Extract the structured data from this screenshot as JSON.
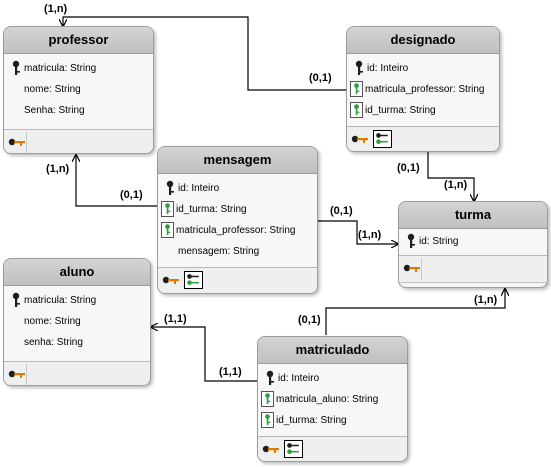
{
  "entities": {
    "professor": {
      "name": "professor",
      "fields": [
        {
          "name": "matricula: String",
          "kind": "pk"
        },
        {
          "name": "nome: String",
          "kind": "plain"
        },
        {
          "name": "Senha: String",
          "kind": "plain"
        }
      ]
    },
    "designado": {
      "name": "designado",
      "fields": [
        {
          "name": "id: Inteiro",
          "kind": "pk"
        },
        {
          "name": "matricula_professor: String",
          "kind": "fk"
        },
        {
          "name": "id_turma: String",
          "kind": "fk"
        }
      ]
    },
    "mensagem": {
      "name": "mensagem",
      "fields": [
        {
          "name": "id: Inteiro",
          "kind": "pk"
        },
        {
          "name": "id_turma: String",
          "kind": "fk"
        },
        {
          "name": "matricula_professor: String",
          "kind": "fk"
        },
        {
          "name": "mensagem: String",
          "kind": "plain"
        }
      ]
    },
    "turma": {
      "name": "turma",
      "fields": [
        {
          "name": "id: String",
          "kind": "pk"
        }
      ]
    },
    "aluno": {
      "name": "aluno",
      "fields": [
        {
          "name": "matricula: String",
          "kind": "pk"
        },
        {
          "name": "nome: String",
          "kind": "plain"
        },
        {
          "name": "senha: String",
          "kind": "plain"
        }
      ]
    },
    "matriculado": {
      "name": "matriculado",
      "fields": [
        {
          "name": "id: Inteiro",
          "kind": "pk"
        },
        {
          "name": "matricula_aluno: String",
          "kind": "fk"
        },
        {
          "name": "id_turma: String",
          "kind": "fk"
        }
      ]
    }
  },
  "relationships": [
    {
      "from": "designado",
      "to": "professor",
      "from_card": "(0,1)",
      "to_card": "(1,n)"
    },
    {
      "from": "designado",
      "to": "turma",
      "from_card": "(0,1)",
      "to_card": "(1,n)"
    },
    {
      "from": "mensagem",
      "to": "professor",
      "from_card": "(0,1)",
      "to_card": "(1,n)"
    },
    {
      "from": "mensagem",
      "to": "turma",
      "from_card": "(0,1)",
      "to_card": "(1,n)"
    },
    {
      "from": "matriculado",
      "to": "aluno",
      "from_card": "(1,1)",
      "to_card": "(1,1)"
    },
    {
      "from": "matriculado",
      "to": "turma",
      "from_card": "(0,1)",
      "to_card": "(1,n)"
    }
  ],
  "colors": {
    "pk_key": "#1d1d1d",
    "fk_key": "#2e9e3c",
    "index_key_body": "#e07b00",
    "header_fill": "#c8c8c8",
    "connector": "#000000"
  }
}
